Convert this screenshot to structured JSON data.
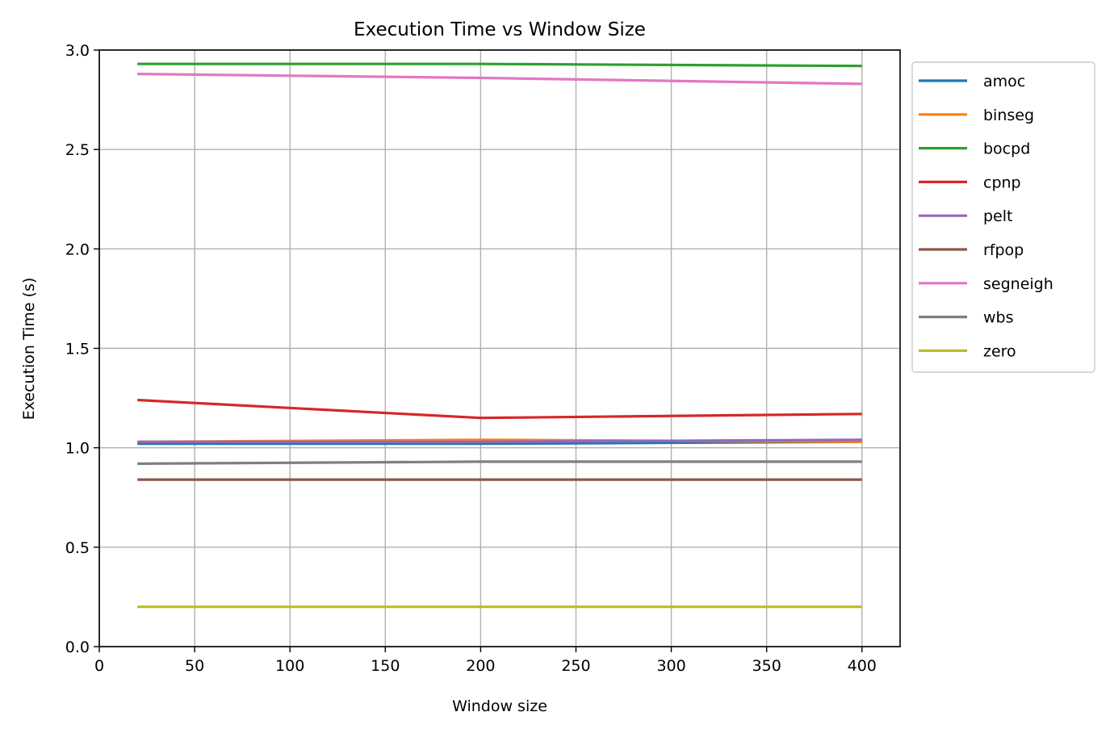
{
  "chart_data": {
    "type": "line",
    "title": "Execution Time vs Window Size",
    "xlabel": "Window size",
    "ylabel": "Execution Time (s)",
    "xlim": [
      0,
      420
    ],
    "ylim": [
      0.0,
      3.0
    ],
    "x_ticks": [
      0,
      50,
      100,
      150,
      200,
      250,
      300,
      350,
      400
    ],
    "x_tick_labels": [
      "0",
      "50",
      "100",
      "150",
      "200",
      "250",
      "300",
      "350",
      "400"
    ],
    "y_ticks": [
      0.0,
      0.5,
      1.0,
      1.5,
      2.0,
      2.5,
      3.0
    ],
    "y_tick_labels": [
      "0.0",
      "0.5",
      "1.0",
      "1.5",
      "2.0",
      "2.5",
      "3.0"
    ],
    "grid": true,
    "legend_position": "outside-top-right",
    "x": [
      20,
      200,
      400
    ],
    "series": [
      {
        "name": "amoc",
        "color": "#1f77b4",
        "values": [
          1.02,
          1.02,
          1.03
        ]
      },
      {
        "name": "binseg",
        "color": "#ff7f0e",
        "values": [
          1.03,
          1.04,
          1.03
        ]
      },
      {
        "name": "bocpd",
        "color": "#2ca02c",
        "values": [
          2.93,
          2.93,
          2.92
        ]
      },
      {
        "name": "cpnp",
        "color": "#d62728",
        "values": [
          1.24,
          1.15,
          1.17
        ]
      },
      {
        "name": "pelt",
        "color": "#9467bd",
        "values": [
          1.03,
          1.03,
          1.04
        ]
      },
      {
        "name": "rfpop",
        "color": "#8c564b",
        "values": [
          0.84,
          0.84,
          0.84
        ]
      },
      {
        "name": "segneigh",
        "color": "#e377c2",
        "values": [
          2.88,
          2.86,
          2.83
        ]
      },
      {
        "name": "wbs",
        "color": "#7f7f7f",
        "values": [
          0.92,
          0.93,
          0.93
        ]
      },
      {
        "name": "zero",
        "color": "#bcbd22",
        "values": [
          0.2,
          0.2,
          0.2
        ]
      }
    ]
  }
}
